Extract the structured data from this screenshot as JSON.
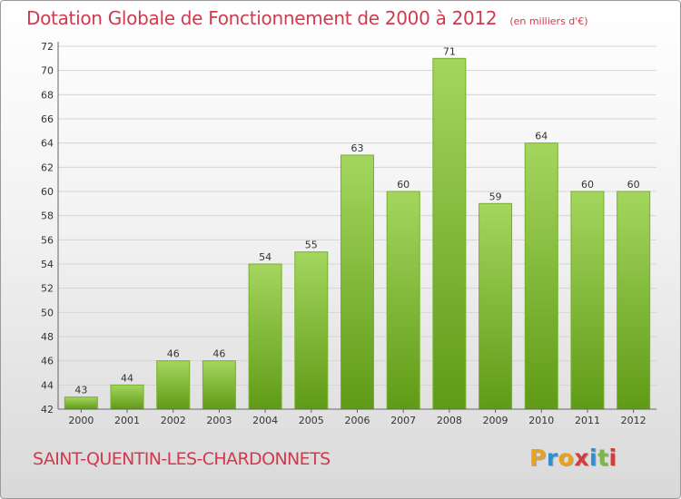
{
  "header": {
    "title": "Dotation Globale de Fonctionnement de 2000 à 2012",
    "unit": "(en milliers d'€)"
  },
  "footer": {
    "commune": "SAINT-QUENTIN-LES-CHARDONNETS",
    "logo_text": "Proxiti",
    "logo_colors": [
      "#e8a21b",
      "#2f8fd1",
      "#e8a21b",
      "#d43b3b",
      "#2f8fd1",
      "#7bb84a",
      "#d43b3b"
    ]
  },
  "chart_data": {
    "type": "bar",
    "categories": [
      "2000",
      "2001",
      "2002",
      "2003",
      "2004",
      "2005",
      "2006",
      "2007",
      "2008",
      "2009",
      "2010",
      "2011",
      "2012"
    ],
    "values": [
      43,
      44,
      46,
      46,
      54,
      55,
      63,
      60,
      71,
      59,
      64,
      60,
      60
    ],
    "title": "Dotation Globale de Fonctionnement de 2000 à 2012",
    "subtitle": "(en milliers d'€)",
    "xlabel": "",
    "ylabel": "",
    "ylim": [
      42,
      72
    ],
    "yticks": [
      42,
      44,
      46,
      48,
      50,
      52,
      54,
      56,
      58,
      60,
      62,
      64,
      66,
      68,
      70,
      72
    ],
    "grid": true,
    "bar_color_top": "#a4d65e",
    "bar_color_bottom": "#5f9b16"
  }
}
